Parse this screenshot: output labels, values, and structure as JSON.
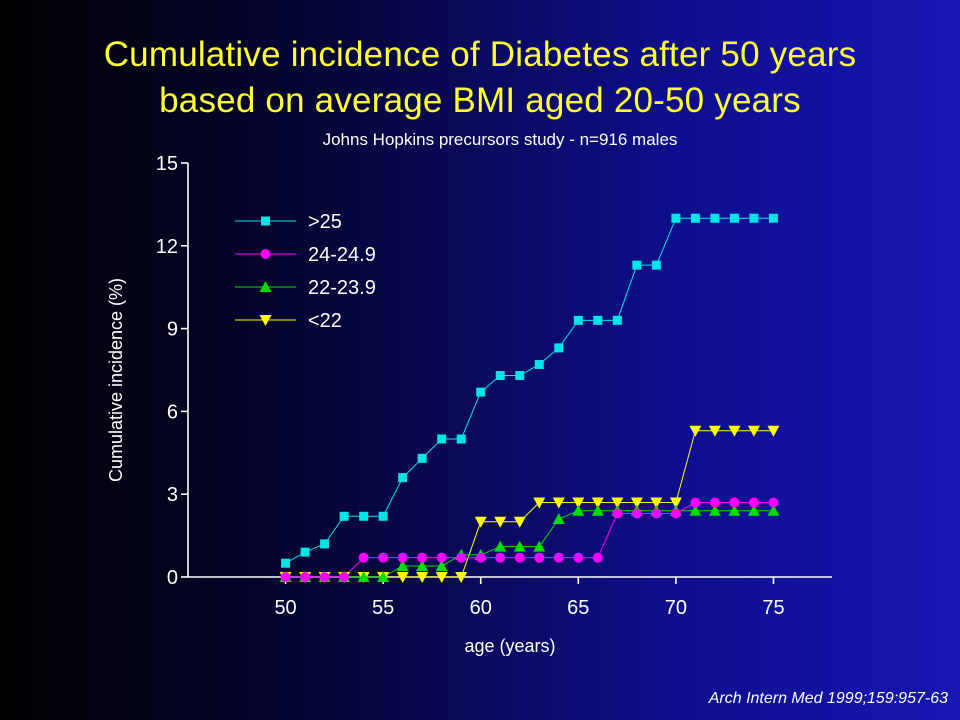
{
  "title_line1": "Cumulative incidence of Diabetes after 50 years",
  "title_line2": "based on average BMI aged 20-50 years",
  "subtitle": "Johns Hopkins precursors study - n=916 males",
  "citation": "Arch Intern Med 1999;159:957-63",
  "chart_data": {
    "type": "line",
    "xlabel": "age (years)",
    "ylabel": "Cumulative incidence (%)",
    "xlim": [
      45,
      78
    ],
    "ylim": [
      0,
      15
    ],
    "x_ticks": [
      50,
      55,
      60,
      65,
      70,
      75
    ],
    "y_ticks": [
      0,
      3,
      6,
      9,
      12,
      15
    ],
    "grid": false,
    "legend_position": "top-left",
    "series": [
      {
        "name": ">25",
        "color": "#00e5e5",
        "marker": "square",
        "x": [
          50,
          51,
          52,
          53,
          54,
          55,
          56,
          57,
          58,
          59,
          60,
          61,
          62,
          63,
          64,
          65,
          66,
          67,
          68,
          69,
          70,
          71,
          72,
          73,
          74,
          75
        ],
        "y": [
          0.5,
          0.9,
          1.2,
          2.2,
          2.2,
          2.2,
          3.6,
          4.3,
          5.0,
          5.0,
          6.7,
          7.3,
          7.3,
          7.7,
          8.3,
          9.3,
          9.3,
          9.3,
          11.3,
          11.3,
          13.0,
          13.0,
          13.0,
          13.0,
          13.0,
          13.0
        ]
      },
      {
        "name": "24-24.9",
        "color": "#ff00ff",
        "marker": "circle",
        "x": [
          50,
          51,
          52,
          53,
          54,
          55,
          56,
          57,
          58,
          59,
          60,
          61,
          62,
          63,
          64,
          65,
          66,
          67,
          68,
          69,
          70,
          71,
          72,
          73,
          74,
          75
        ],
        "y": [
          0,
          0,
          0,
          0,
          0.7,
          0.7,
          0.7,
          0.7,
          0.7,
          0.7,
          0.7,
          0.7,
          0.7,
          0.7,
          0.7,
          0.7,
          0.7,
          2.3,
          2.3,
          2.3,
          2.3,
          2.7,
          2.7,
          2.7,
          2.7,
          2.7
        ]
      },
      {
        "name": "22-23.9",
        "color": "#00dd00",
        "marker": "triangle-up",
        "x": [
          50,
          51,
          52,
          53,
          54,
          55,
          56,
          57,
          58,
          59,
          60,
          61,
          62,
          63,
          64,
          65,
          66,
          67,
          68,
          69,
          70,
          71,
          72,
          73,
          74,
          75
        ],
        "y": [
          0,
          0,
          0,
          0,
          0,
          0,
          0.4,
          0.4,
          0.4,
          0.8,
          0.8,
          1.1,
          1.1,
          1.1,
          2.1,
          2.4,
          2.4,
          2.4,
          2.4,
          2.4,
          2.4,
          2.4,
          2.4,
          2.4,
          2.4,
          2.4
        ]
      },
      {
        "name": "<22",
        "color": "#ffff00",
        "marker": "triangle-down",
        "x": [
          50,
          51,
          52,
          53,
          54,
          55,
          56,
          57,
          58,
          59,
          60,
          61,
          62,
          63,
          64,
          65,
          66,
          67,
          68,
          69,
          70,
          71,
          72,
          73,
          74,
          75
        ],
        "y": [
          0,
          0,
          0,
          0,
          0,
          0,
          0,
          0,
          0,
          0,
          2.0,
          2.0,
          2.0,
          2.7,
          2.7,
          2.7,
          2.7,
          2.7,
          2.7,
          2.7,
          2.7,
          5.3,
          5.3,
          5.3,
          5.3,
          5.3
        ]
      }
    ]
  }
}
